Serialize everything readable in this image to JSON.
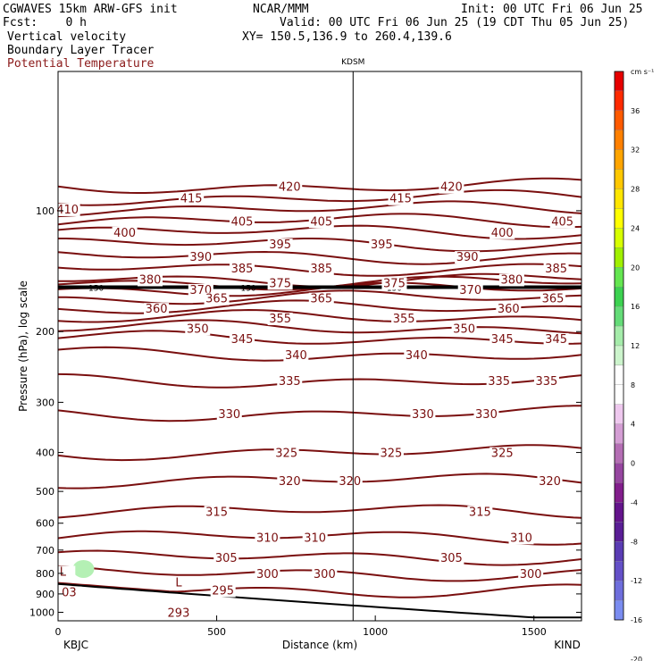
{
  "header": {
    "model": "CGWAVES 15km ARW-GFS init",
    "org": "NCAR/MMM",
    "init": "Init: 00 UTC Fri 06 Jun 25",
    "fcst": "Fcst:    0 h",
    "valid": "Valid: 00 UTC Fri 06 Jun 25 (19 CDT Thu 05 Jun 25)",
    "xy": "XY= 150.5,136.9 to 260.4,139.6"
  },
  "fields": [
    "Vertical velocity",
    "Boundary Layer Tracer",
    "Potential Temperature"
  ],
  "colorbar": {
    "unit": "cm s⁻¹",
    "labels": [
      "36",
      "32",
      "28",
      "24",
      "20",
      "16",
      "12",
      "8",
      "4",
      "0",
      "-4",
      "-8",
      "-12",
      "-16",
      "-20"
    ],
    "colors": [
      "#e60000",
      "#ff2a00",
      "#ff5a00",
      "#ff8000",
      "#ffa500",
      "#ffc800",
      "#ffe600",
      "#ffff00",
      "#d7ff00",
      "#a0f000",
      "#64e650",
      "#3cd250",
      "#64dc78",
      "#a5ecaa",
      "#ccf4cc",
      "#ffffff",
      "#ffffff",
      "#eec8ee",
      "#d49ed4",
      "#b46eb4",
      "#9646a0",
      "#821e8c",
      "#64148c",
      "#5a1e96",
      "#5a3cb4",
      "#6450c8",
      "#6e6edc",
      "#7a8cf0"
    ]
  },
  "chart_data": {
    "type": "line",
    "title": "KDSM",
    "xlabel": "Distance (km)",
    "ylabel": "Pressure (hPa), log scale",
    "xlim": [
      0,
      1650
    ],
    "ylim": [
      1050,
      45
    ],
    "yscale": "log",
    "xticks": [
      0,
      500,
      1000,
      1500
    ],
    "yticks": [
      100,
      200,
      300,
      400,
      500,
      600,
      700,
      800,
      900,
      1000
    ],
    "x_end_labels": {
      "left": "KBJC",
      "right": "KIND"
    },
    "marker_x": 930,
    "tropopause_label": "150",
    "tropopause_p": 155,
    "contour_interval_K": 5,
    "isentropes": [
      {
        "theta": 420,
        "p": 87
      },
      {
        "theta": 415,
        "p": 93
      },
      {
        "theta": 410,
        "p": 99
      },
      {
        "theta": 405,
        "p": 106
      },
      {
        "theta": 400,
        "p": 113
      },
      {
        "theta": 395,
        "p": 121
      },
      {
        "theta": 390,
        "p": 130
      },
      {
        "theta": 385,
        "p": 139
      },
      {
        "theta": 380,
        "p": 148
      },
      {
        "theta": 375,
        "p": 151
      },
      {
        "theta": 370,
        "p": 157
      },
      {
        "theta": 365,
        "p": 165
      },
      {
        "theta": 360,
        "p": 175
      },
      {
        "theta": 355,
        "p": 185
      },
      {
        "theta": 350,
        "p": 196
      },
      {
        "theta": 345,
        "p": 208
      },
      {
        "theta": 340,
        "p": 228
      },
      {
        "theta": 335,
        "p": 265
      },
      {
        "theta": 330,
        "p": 320
      },
      {
        "theta": 325,
        "p": 400
      },
      {
        "theta": 320,
        "p": 470
      },
      {
        "theta": 315,
        "p": 560
      },
      {
        "theta": 310,
        "p": 650
      },
      {
        "theta": 305,
        "p": 730
      },
      {
        "theta": 300,
        "p": 800
      },
      {
        "theta": 295,
        "p": 880
      }
    ],
    "contour_labels": [
      {
        "text": "420",
        "x": 730
      },
      {
        "text": "420",
        "x": 1240
      },
      {
        "text": "415",
        "x": 420
      },
      {
        "text": "415",
        "x": 1080
      },
      {
        "text": "410",
        "x": 30
      },
      {
        "text": "405",
        "x": 580
      },
      {
        "text": "405",
        "x": 830
      },
      {
        "text": "405",
        "x": 1590
      },
      {
        "text": "400",
        "x": 210
      },
      {
        "text": "400",
        "x": 1400
      },
      {
        "text": "395",
        "x": 700
      },
      {
        "text": "395",
        "x": 1020
      },
      {
        "text": "390",
        "x": 450
      },
      {
        "text": "390",
        "x": 1290
      },
      {
        "text": "385",
        "x": 580
      },
      {
        "text": "385",
        "x": 830
      },
      {
        "text": "385",
        "x": 1570
      },
      {
        "text": "380",
        "x": 290
      },
      {
        "text": "380",
        "x": 1430
      },
      {
        "text": "375",
        "x": 700
      },
      {
        "text": "375",
        "x": 1060
      },
      {
        "text": "370",
        "x": 450
      },
      {
        "text": "370",
        "x": 1300
      },
      {
        "text": "365",
        "x": 500
      },
      {
        "text": "365",
        "x": 830
      },
      {
        "text": "365",
        "x": 1560
      },
      {
        "text": "360",
        "x": 310
      },
      {
        "text": "360",
        "x": 1420
      },
      {
        "text": "355",
        "x": 700
      },
      {
        "text": "355",
        "x": 1090
      },
      {
        "text": "350",
        "x": 440
      },
      {
        "text": "350",
        "x": 1280
      },
      {
        "text": "345",
        "x": 580
      },
      {
        "text": "345",
        "x": 1400
      },
      {
        "text": "345",
        "x": 1570
      },
      {
        "text": "340",
        "x": 750
      },
      {
        "text": "340",
        "x": 1130
      },
      {
        "text": "335",
        "x": 730
      },
      {
        "text": "335",
        "x": 1390
      },
      {
        "text": "335",
        "x": 1540
      },
      {
        "text": "330",
        "x": 540
      },
      {
        "text": "330",
        "x": 1150
      },
      {
        "text": "330",
        "x": 1350
      },
      {
        "text": "325",
        "x": 720
      },
      {
        "text": "325",
        "x": 1050
      },
      {
        "text": "325",
        "x": 1400
      },
      {
        "text": "320",
        "x": 730
      },
      {
        "text": "320",
        "x": 920
      },
      {
        "text": "320",
        "x": 1550
      },
      {
        "text": "315",
        "x": 500
      },
      {
        "text": "315",
        "x": 1330
      },
      {
        "text": "310",
        "x": 660
      },
      {
        "text": "310",
        "x": 810
      },
      {
        "text": "310",
        "x": 1460
      },
      {
        "text": "305",
        "x": 530
      },
      {
        "text": "305",
        "x": 1240
      },
      {
        "text": "300",
        "x": 660
      },
      {
        "text": "300",
        "x": 840
      },
      {
        "text": "300",
        "x": 1490
      },
      {
        "text": "295",
        "x": 520
      },
      {
        "text": "293",
        "x": 380
      },
      {
        "text": "L",
        "x": 380
      },
      {
        "text": "L",
        "x": 15
      },
      {
        "text": "03",
        "x": 35
      }
    ],
    "grid": false,
    "legend": "none"
  }
}
